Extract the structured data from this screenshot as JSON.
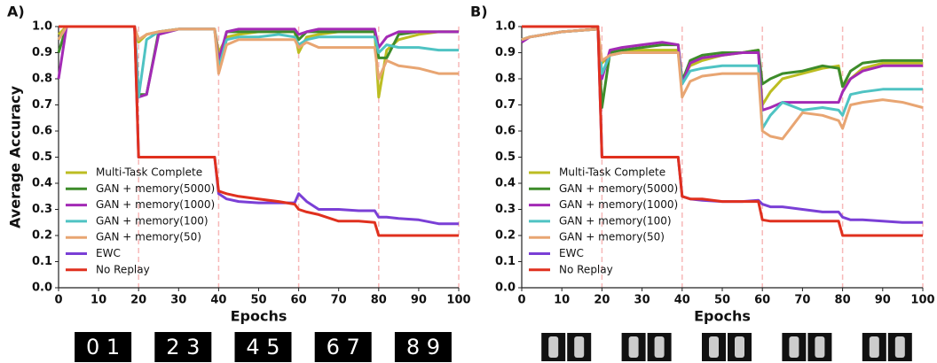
{
  "chart_data": [
    {
      "type": "line",
      "label": "A)",
      "xlabel": "Epochs",
      "ylabel": "Average Accuracy",
      "x": [
        0,
        2,
        10,
        19,
        20,
        22,
        25,
        30,
        35,
        39,
        40,
        42,
        45,
        50,
        55,
        59,
        60,
        62,
        65,
        70,
        75,
        79,
        80,
        82,
        85,
        90,
        95,
        100
      ],
      "xlim": [
        0,
        100
      ],
      "ylim": [
        0,
        1
      ],
      "xticks": [
        0,
        10,
        20,
        30,
        40,
        50,
        60,
        70,
        80,
        90,
        100
      ],
      "yticks": [
        {
          "value": 0,
          "label": "0.0"
        },
        0.1,
        0.2,
        0.3,
        0.4,
        0.5,
        0.6,
        0.7,
        0.8,
        0.9,
        {
          "value": 1,
          "label": "1.0"
        }
      ],
      "task_boundaries": [
        20,
        40,
        60,
        80,
        100
      ],
      "legend": "lower left",
      "task_images": [
        "0 1",
        "2 3",
        "4 5",
        "6 7",
        "8 9"
      ],
      "series": [
        {
          "name": "Multi-Task Complete",
          "color": "#bcbd22",
          "values": [
            0.97,
            1,
            1,
            1,
            0.94,
            0.97,
            0.98,
            0.99,
            0.99,
            0.99,
            0.9,
            0.96,
            0.97,
            0.98,
            0.98,
            0.98,
            0.9,
            0.96,
            0.97,
            0.98,
            0.98,
            0.98,
            0.73,
            0.91,
            0.95,
            0.97,
            0.98,
            0.98
          ]
        },
        {
          "name": "GAN + memory(5000)",
          "color": "#3d8c2a",
          "values": [
            0.9,
            1,
            1,
            1,
            0.74,
            0.74,
            0.98,
            0.99,
            0.99,
            0.99,
            0.86,
            0.98,
            0.98,
            0.98,
            0.98,
            0.98,
            0.95,
            0.98,
            0.98,
            0.98,
            0.98,
            0.98,
            0.88,
            0.88,
            0.97,
            0.98,
            0.98,
            0.98
          ]
        },
        {
          "name": "GAN + memory(1000)",
          "color": "#a32ab5",
          "values": [
            0.8,
            1,
            1,
            1,
            0.73,
            0.74,
            0.97,
            0.99,
            0.99,
            0.99,
            0.87,
            0.98,
            0.99,
            0.99,
            0.99,
            0.99,
            0.97,
            0.98,
            0.99,
            0.99,
            0.99,
            0.99,
            0.92,
            0.96,
            0.98,
            0.98,
            0.98,
            0.98
          ]
        },
        {
          "name": "GAN + memory(100)",
          "color": "#4fc3c3",
          "values": [
            0.95,
            1,
            1,
            1,
            0.73,
            0.95,
            0.98,
            0.99,
            0.99,
            0.99,
            0.84,
            0.95,
            0.96,
            0.96,
            0.97,
            0.96,
            0.93,
            0.95,
            0.96,
            0.96,
            0.96,
            0.96,
            0.9,
            0.93,
            0.92,
            0.92,
            0.91,
            0.91
          ]
        },
        {
          "name": "GAN + memory(50)",
          "color": "#e8a572",
          "values": [
            0.95,
            1,
            1,
            1,
            0.95,
            0.97,
            0.98,
            0.99,
            0.99,
            0.99,
            0.82,
            0.93,
            0.95,
            0.95,
            0.95,
            0.95,
            0.92,
            0.94,
            0.92,
            0.92,
            0.92,
            0.92,
            0.8,
            0.87,
            0.85,
            0.84,
            0.82,
            0.82
          ]
        },
        {
          "name": "EWC",
          "color": "#7a3fd6",
          "values": [
            1,
            1,
            1,
            1,
            0.5,
            0.5,
            0.5,
            0.5,
            0.5,
            0.5,
            0.36,
            0.34,
            0.33,
            0.325,
            0.325,
            0.325,
            0.36,
            0.33,
            0.3,
            0.3,
            0.295,
            0.295,
            0.27,
            0.27,
            0.265,
            0.26,
            0.245,
            0.245
          ]
        },
        {
          "name": "No Replay",
          "color": "#e0301e",
          "values": [
            1,
            1,
            1,
            1,
            0.5,
            0.5,
            0.5,
            0.5,
            0.5,
            0.5,
            0.37,
            0.36,
            0.35,
            0.34,
            0.33,
            0.32,
            0.3,
            0.29,
            0.28,
            0.255,
            0.255,
            0.25,
            0.2,
            0.2,
            0.2,
            0.2,
            0.2,
            0.2
          ]
        }
      ]
    },
    {
      "type": "line",
      "label": "B)",
      "xlabel": "Epochs",
      "x": [
        0,
        2,
        10,
        19,
        20,
        22,
        25,
        30,
        35,
        39,
        40,
        42,
        45,
        50,
        55,
        59,
        60,
        62,
        65,
        70,
        75,
        79,
        80,
        82,
        85,
        90,
        95,
        100
      ],
      "xlim": [
        0,
        100
      ],
      "ylim": [
        0,
        1
      ],
      "xticks": [
        0,
        10,
        20,
        30,
        40,
        50,
        60,
        70,
        80,
        90,
        100
      ],
      "yticks": [
        {
          "value": 0,
          "label": "0.0"
        },
        0.1,
        0.2,
        0.3,
        0.4,
        0.5,
        0.6,
        0.7,
        0.8,
        0.9,
        {
          "value": 1,
          "label": "1.0"
        }
      ],
      "task_boundaries": [
        20,
        40,
        60,
        80,
        100
      ],
      "legend": "lower left",
      "series": [
        {
          "name": "Multi-Task Complete",
          "color": "#bcbd22",
          "values": [
            0.95,
            0.96,
            0.98,
            0.99,
            0.86,
            0.89,
            0.9,
            0.91,
            0.91,
            0.91,
            0.8,
            0.85,
            0.87,
            0.89,
            0.9,
            0.91,
            0.7,
            0.75,
            0.8,
            0.82,
            0.84,
            0.85,
            0.77,
            0.8,
            0.84,
            0.86,
            0.86,
            0.86
          ]
        },
        {
          "name": "GAN + memory(5000)",
          "color": "#3d8c2a",
          "values": [
            0.95,
            0.96,
            0.98,
            0.99,
            0.69,
            0.9,
            0.91,
            0.92,
            0.93,
            0.93,
            0.79,
            0.87,
            0.89,
            0.9,
            0.9,
            0.91,
            0.78,
            0.8,
            0.82,
            0.83,
            0.85,
            0.84,
            0.77,
            0.83,
            0.86,
            0.87,
            0.87,
            0.87
          ]
        },
        {
          "name": "GAN + memory(1000)",
          "color": "#a32ab5",
          "values": [
            0.94,
            0.96,
            0.98,
            0.99,
            0.8,
            0.91,
            0.92,
            0.93,
            0.94,
            0.93,
            0.78,
            0.86,
            0.88,
            0.89,
            0.9,
            0.9,
            0.68,
            0.69,
            0.71,
            0.71,
            0.71,
            0.71,
            0.75,
            0.8,
            0.83,
            0.85,
            0.85,
            0.85
          ]
        },
        {
          "name": "GAN + memory(100)",
          "color": "#4fc3c3",
          "values": [
            0.95,
            0.96,
            0.98,
            0.99,
            0.82,
            0.89,
            0.9,
            0.9,
            0.9,
            0.9,
            0.78,
            0.83,
            0.84,
            0.85,
            0.85,
            0.85,
            0.61,
            0.66,
            0.71,
            0.68,
            0.69,
            0.68,
            0.66,
            0.74,
            0.75,
            0.76,
            0.76,
            0.76
          ]
        },
        {
          "name": "GAN + memory(50)",
          "color": "#e8a572",
          "values": [
            0.95,
            0.96,
            0.98,
            0.99,
            0.87,
            0.89,
            0.9,
            0.9,
            0.9,
            0.9,
            0.73,
            0.79,
            0.81,
            0.82,
            0.82,
            0.82,
            0.6,
            0.58,
            0.57,
            0.67,
            0.66,
            0.64,
            0.61,
            0.7,
            0.71,
            0.72,
            0.71,
            0.69
          ]
        },
        {
          "name": "EWC",
          "color": "#7a3fd6",
          "values": [
            1,
            1,
            1,
            1,
            0.5,
            0.5,
            0.5,
            0.5,
            0.5,
            0.5,
            0.35,
            0.34,
            0.335,
            0.33,
            0.33,
            0.335,
            0.32,
            0.31,
            0.31,
            0.3,
            0.29,
            0.29,
            0.27,
            0.26,
            0.26,
            0.255,
            0.25,
            0.25
          ]
        },
        {
          "name": "No Replay",
          "color": "#e0301e",
          "values": [
            1,
            1,
            1,
            1,
            0.5,
            0.5,
            0.5,
            0.5,
            0.5,
            0.5,
            0.35,
            0.34,
            0.34,
            0.33,
            0.33,
            0.33,
            0.26,
            0.255,
            0.255,
            0.255,
            0.255,
            0.255,
            0.2,
            0.2,
            0.2,
            0.2,
            0.2,
            0.2
          ]
        }
      ]
    }
  ]
}
